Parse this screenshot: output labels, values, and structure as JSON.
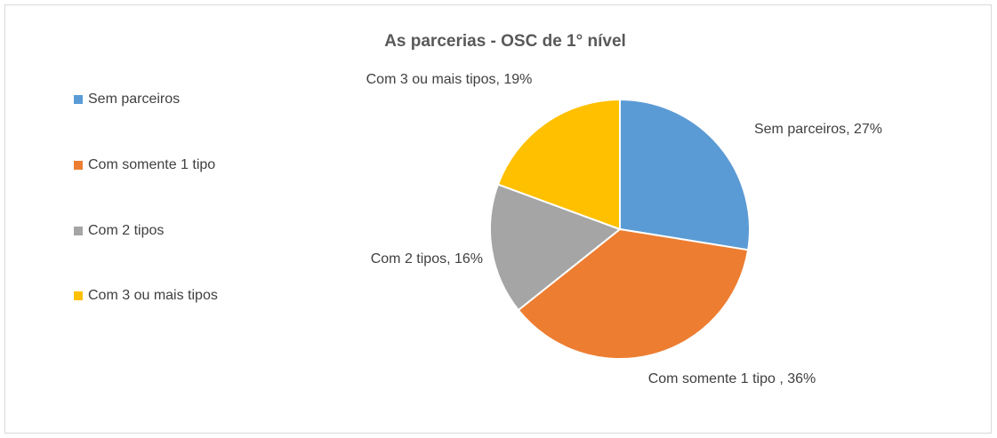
{
  "chart_data": {
    "type": "pie",
    "title": "As parcerias - OSC de 1° nível",
    "categories": [
      "Sem parceiros",
      "Com somente 1 tipo",
      "Com 2 tipos",
      "Com 3 ou mais tipos"
    ],
    "values": [
      27,
      36,
      16,
      19
    ],
    "value_labels": [
      "Sem parceiros, 27%",
      "Com somente 1 tipo , 36%",
      "Com 2 tipos, 16%",
      "Com 3 ou mais tipos, 19%"
    ],
    "colors": [
      "#5b9bd5",
      "#ed7d31",
      "#a5a5a5",
      "#ffc000"
    ],
    "legend": "left"
  }
}
